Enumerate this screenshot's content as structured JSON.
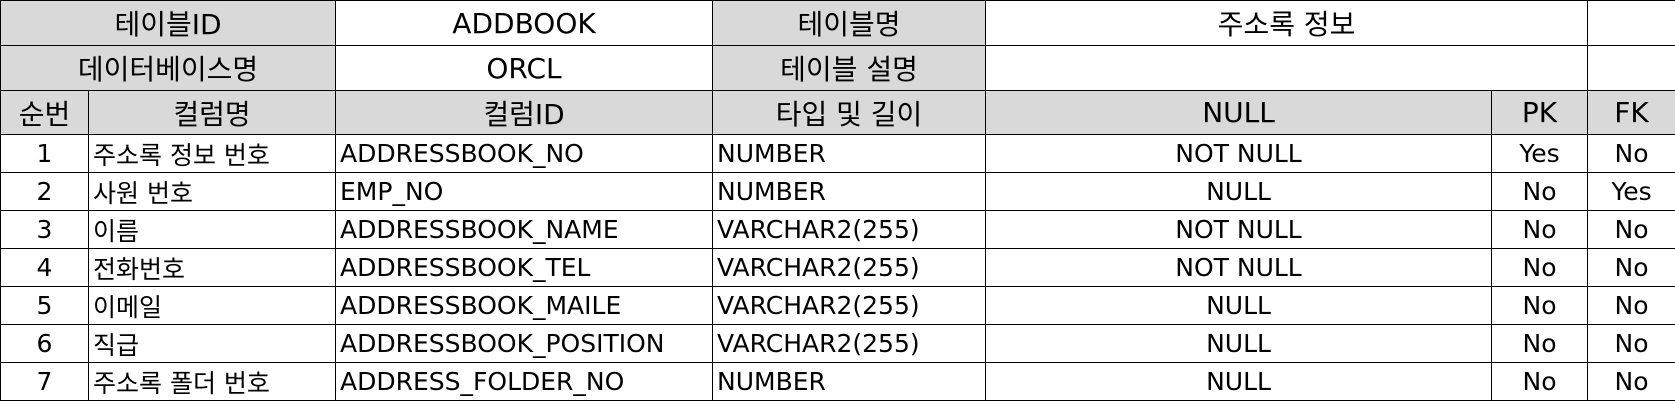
{
  "table_info": {
    "table_id_label": "테이블ID",
    "table_id_value": "ADDBOOK",
    "table_name_label": "테이블명",
    "table_name_value": "주소록 정보",
    "db_name_label": "데이터베이스명",
    "db_name_value": "ORCL",
    "table_desc_label": "테이블 설명",
    "table_desc_value": ""
  },
  "columns_header": {
    "seq": "순번",
    "column_name": "컬럼명",
    "column_id": "컬럼ID",
    "type_length": "타입 및 길이",
    "null": "NULL",
    "pk": "PK",
    "fk": "FK"
  },
  "rows": [
    {
      "seq": "1",
      "name": "주소록 정보 번호",
      "id": "ADDRESSBOOK_NO",
      "type": "NUMBER",
      "null": "NOT NULL",
      "pk": "Yes",
      "fk": "No"
    },
    {
      "seq": "2",
      "name": "사원 번호",
      "id": "EMP_NO",
      "type": "NUMBER",
      "null": "NULL",
      "pk": "No",
      "fk": "Yes"
    },
    {
      "seq": "3",
      "name": "이름",
      "id": "ADDRESSBOOK_NAME",
      "type": "VARCHAR2(255)",
      "null": "NOT NULL",
      "pk": "No",
      "fk": "No"
    },
    {
      "seq": "4",
      "name": "전화번호",
      "id": "ADDRESSBOOK_TEL",
      "type": "VARCHAR2(255)",
      "null": "NOT NULL",
      "pk": "No",
      "fk": "No"
    },
    {
      "seq": "5",
      "name": "이메일",
      "id": "ADDRESSBOOK_MAILE",
      "type": "VARCHAR2(255)",
      "null": "NULL",
      "pk": "No",
      "fk": "No"
    },
    {
      "seq": "6",
      "name": "직급",
      "id": "ADDRESSBOOK_POSITION",
      "type": "VARCHAR2(255)",
      "null": "NULL",
      "pk": "No",
      "fk": "No"
    },
    {
      "seq": "7",
      "name": "주소록 폴더 번호",
      "id": "ADDRESS_FOLDER_NO",
      "type": "NUMBER",
      "null": "NULL",
      "pk": "No",
      "fk": "No"
    }
  ],
  "colors": {
    "header_fill": "#d9d9d9",
    "border": "#000000",
    "background": "#ffffff"
  }
}
